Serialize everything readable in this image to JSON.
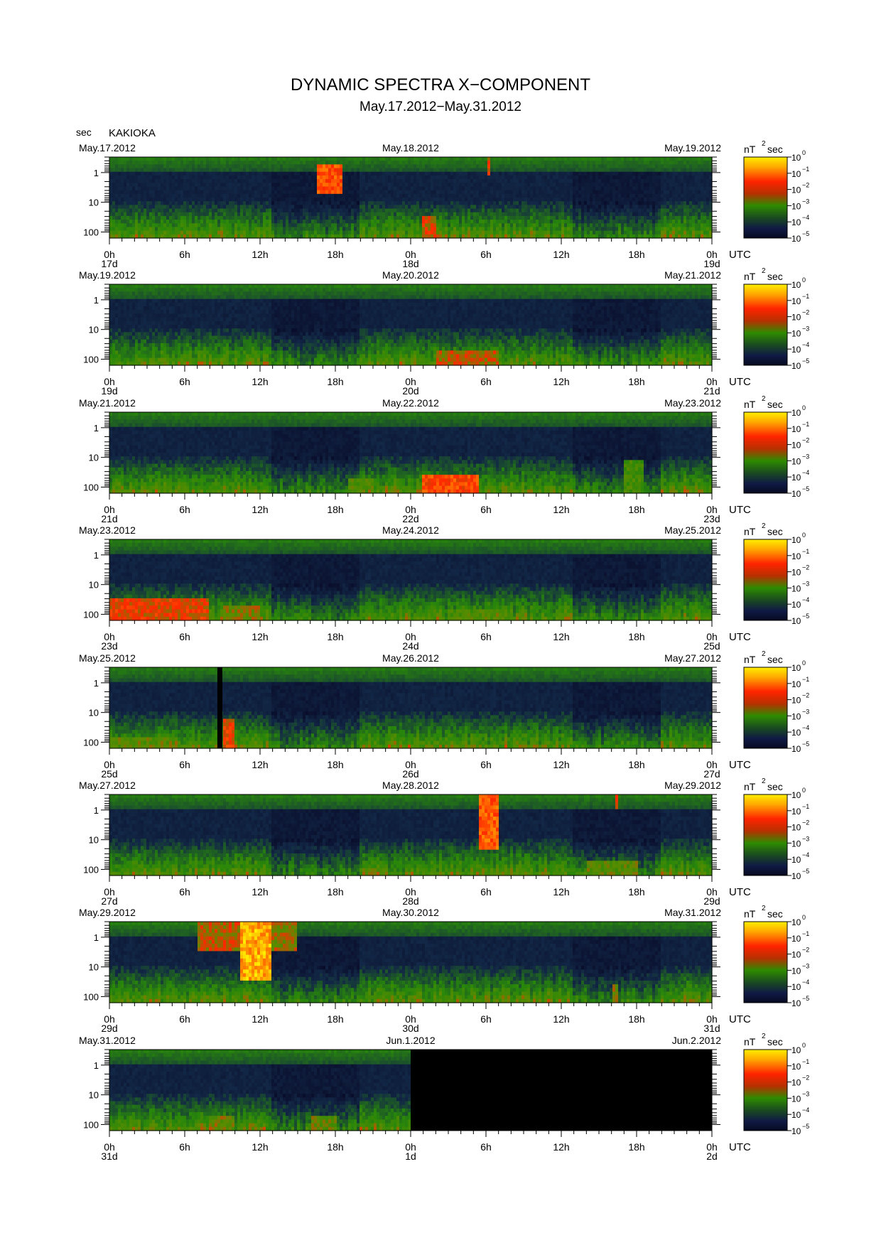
{
  "header": {
    "title": "DYNAMIC SPECTRA X−COMPONENT",
    "subtitle": "May.17.2012−May.31.2012",
    "y_unit": "sec",
    "station": "KAKIOKA"
  },
  "chart_data": {
    "type": "heatmap",
    "y_axis": {
      "label": "sec",
      "scale": "log",
      "ticks": [
        "1",
        "10",
        "100"
      ],
      "range": [
        0.3,
        160
      ]
    },
    "x_axis": {
      "tick_labels": [
        "0h",
        "6h",
        "12h",
        "18h",
        "0h",
        "6h",
        "12h",
        "18h",
        "0h"
      ],
      "unit": "UTC",
      "range_hours": [
        0,
        48
      ]
    },
    "colorbar": {
      "unit": "nT",
      "unit_exponent": "2",
      "unit_suffix": "sec",
      "base": "10",
      "exponents": [
        "0",
        "−1",
        "−2",
        "−3",
        "−4",
        "−5"
      ],
      "colors": [
        "#ffef00",
        "#ff2400",
        "#2e8b00",
        "#0a1230"
      ]
    },
    "panels": [
      {
        "date_left": "May.17.2012",
        "date_mid": "May.18.2012",
        "date_right": "May.19.2012",
        "day_labels": [
          "17d",
          "18d",
          "19d"
        ],
        "no_data_from_hour": null,
        "events": [
          {
            "t0": 16.5,
            "t1": 18.5,
            "top": 0.05,
            "bottom": 0.45,
            "level": 0.88
          },
          {
            "t0": 24.8,
            "t1": 26.0,
            "top": 0.72,
            "bottom": 1.0,
            "level": 0.78
          },
          {
            "t0": 30.1,
            "t1": 30.4,
            "top": 0.0,
            "bottom": 0.2,
            "level": 0.8
          },
          {
            "t0": 8.5,
            "t1": 9.0,
            "top": 0.93,
            "bottom": 1.0,
            "level": 0.7
          }
        ]
      },
      {
        "date_left": "May.19.2012",
        "date_mid": "May.20.2012",
        "date_right": "May.21.2012",
        "day_labels": [
          "19d",
          "20d",
          "21d"
        ],
        "no_data_from_hour": null,
        "events": [
          {
            "t0": 26.0,
            "t1": 31.0,
            "top": 0.85,
            "bottom": 1.0,
            "level": 0.75
          },
          {
            "t0": 2.0,
            "t1": 4.0,
            "top": 0.92,
            "bottom": 1.0,
            "level": 0.62
          }
        ]
      },
      {
        "date_left": "May.21.2012",
        "date_mid": "May.22.2012",
        "date_right": "May.23.2012",
        "day_labels": [
          "21d",
          "22d",
          "23d"
        ],
        "no_data_from_hour": null,
        "events": [
          {
            "t0": 25.0,
            "t1": 29.5,
            "top": 0.78,
            "bottom": 1.0,
            "level": 0.86
          },
          {
            "t0": 41.0,
            "t1": 42.5,
            "top": 0.6,
            "bottom": 1.0,
            "level": 0.6
          },
          {
            "t0": 19.0,
            "t1": 21.0,
            "top": 0.85,
            "bottom": 1.0,
            "level": 0.62
          }
        ]
      },
      {
        "date_left": "May.23.2012",
        "date_mid": "May.24.2012",
        "date_right": "May.25.2012",
        "day_labels": [
          "23d",
          "24d",
          "25d"
        ],
        "no_data_from_hour": null,
        "events": [
          {
            "t0": 0.0,
            "t1": 8.0,
            "top": 0.72,
            "bottom": 1.0,
            "level": 0.8
          },
          {
            "t0": 9.0,
            "t1": 12.0,
            "top": 0.85,
            "bottom": 1.0,
            "level": 0.7
          },
          {
            "t0": 27.0,
            "t1": 32.0,
            "top": 0.88,
            "bottom": 1.0,
            "level": 0.62
          }
        ]
      },
      {
        "date_left": "May.25.2012",
        "date_mid": "May.26.2012",
        "date_right": "May.27.2012",
        "day_labels": [
          "25d",
          "26d",
          "27d"
        ],
        "no_data_from_hour": null,
        "gaps": [
          {
            "t0": 8.6,
            "t1": 9.0
          }
        ],
        "events": [
          {
            "t0": 9.0,
            "t1": 10.0,
            "top": 0.65,
            "bottom": 1.0,
            "level": 0.82
          },
          {
            "t0": 0.0,
            "t1": 5.0,
            "top": 0.9,
            "bottom": 1.0,
            "level": 0.65
          }
        ]
      },
      {
        "date_left": "May.27.2012",
        "date_mid": "May.28.2012",
        "date_right": "May.29.2012",
        "day_labels": [
          "27d",
          "28d",
          "29d"
        ],
        "no_data_from_hour": null,
        "events": [
          {
            "t0": 29.5,
            "t1": 31.0,
            "top": 0.0,
            "bottom": 0.7,
            "level": 0.9
          },
          {
            "t0": 38.0,
            "t1": 42.0,
            "top": 0.85,
            "bottom": 1.0,
            "level": 0.65
          },
          {
            "t0": 40.3,
            "t1": 40.6,
            "top": 0.0,
            "bottom": 0.15,
            "level": 0.8
          }
        ]
      },
      {
        "date_left": "May.29.2012",
        "date_mid": "May.30.2012",
        "date_right": "May.31.2012",
        "day_labels": [
          "29d",
          "30d",
          "31d"
        ],
        "no_data_from_hour": null,
        "events": [
          {
            "t0": 10.5,
            "t1": 13.0,
            "top": 0.0,
            "bottom": 0.75,
            "level": 1.0
          },
          {
            "t0": 7.0,
            "t1": 10.5,
            "top": 0.0,
            "bottom": 0.35,
            "level": 0.75
          },
          {
            "t0": 13.0,
            "t1": 15.0,
            "top": 0.0,
            "bottom": 0.35,
            "level": 0.72
          },
          {
            "t0": 40.0,
            "t1": 40.6,
            "top": 0.8,
            "bottom": 1.0,
            "level": 0.7
          }
        ]
      },
      {
        "date_left": "May.31.2012",
        "date_mid": "Jun.1.2012",
        "date_right": "Jun.2.2012",
        "day_labels": [
          "31d",
          "1d",
          "2d"
        ],
        "no_data_from_hour": 24,
        "events": [
          {
            "t0": 8.0,
            "t1": 10.0,
            "top": 0.85,
            "bottom": 1.0,
            "level": 0.68
          },
          {
            "t0": 16.0,
            "t1": 18.0,
            "top": 0.85,
            "bottom": 1.0,
            "level": 0.66
          }
        ]
      }
    ]
  }
}
